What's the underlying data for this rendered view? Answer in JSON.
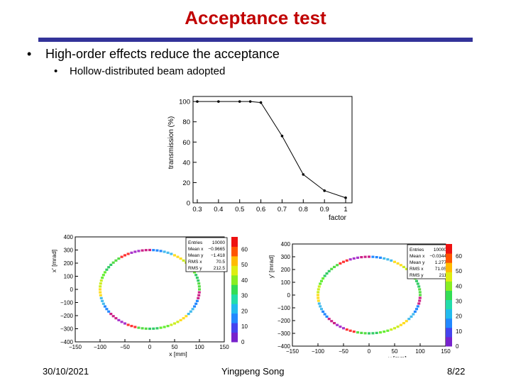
{
  "slide": {
    "title": "Acceptance test",
    "bullet1": "High-order effects reduce the acceptance",
    "bullet2": "Hollow-distributed beam adopted",
    "bullet_symbol": "•",
    "footer_date": "30/10/2021",
    "footer_author": "Yingpeng Song",
    "footer_page": "8/22",
    "title_color": "#c00000",
    "rule_color": "#333399"
  },
  "chart_data": [
    {
      "type": "line",
      "x": [
        0.3,
        0.4,
        0.5,
        0.55,
        0.6,
        0.7,
        0.8,
        0.9,
        1.0
      ],
      "y": [
        100,
        100,
        100,
        100,
        99,
        66,
        28,
        12,
        5
      ],
      "xticks": [
        "0.3",
        "0.4",
        "0.5",
        "0.6",
        "0.7",
        "0.8",
        "0.9",
        "1"
      ],
      "yticks": [
        "0",
        "20",
        "40",
        "60",
        "80",
        "100"
      ],
      "xlabel": "factor",
      "ylabel": "transmission (%)",
      "xlim": [
        0.28,
        1.03
      ],
      "ylim": [
        0,
        105
      ]
    },
    {
      "type": "heatmap",
      "description_shape": "hollow ring",
      "xlabel": "x [mm]",
      "ylabel": "x' [mrad]",
      "xticks": [
        "−150",
        "−100",
        "−50",
        "0",
        "50",
        "100",
        "150"
      ],
      "yticks": [
        "−400",
        "−300",
        "−200",
        "−100",
        "0",
        "100",
        "200",
        "300",
        "400"
      ],
      "xlim": [
        -150,
        150
      ],
      "ylim": [
        -400,
        400
      ],
      "ring_radius_x": 100,
      "ring_radius_y": 300,
      "stats": [
        {
          "label": "Entries",
          "value": "10000"
        },
        {
          "label": "Mean x",
          "value": "−0.9665"
        },
        {
          "label": "Mean y",
          "value": "−1.418"
        },
        {
          "label": "RMS x",
          "value": "70.5"
        },
        {
          "label": "RMS y",
          "value": "212.5"
        }
      ],
      "colorbar_ticks": [
        "0",
        "10",
        "20",
        "30",
        "40",
        "50",
        "60"
      ]
    },
    {
      "type": "heatmap",
      "description_shape": "hollow ring",
      "xlabel": "y [mm]",
      "ylabel": "y' [mrad]",
      "xticks": [
        "−150",
        "−100",
        "−50",
        "0",
        "50",
        "100",
        "150"
      ],
      "yticks": [
        "−400",
        "−300",
        "−200",
        "−100",
        "0",
        "100",
        "200",
        "300",
        "400"
      ],
      "xlim": [
        -150,
        150
      ],
      "ylim": [
        -400,
        400
      ],
      "ring_radius_x": 100,
      "ring_radius_y": 300,
      "stats": [
        {
          "label": "Entries",
          "value": "10000"
        },
        {
          "label": "Mean x",
          "value": "−0.0344"
        },
        {
          "label": "Mean y",
          "value": "1.277"
        },
        {
          "label": "RMS x",
          "value": "71.05"
        },
        {
          "label": "RMS y",
          "value": "211"
        }
      ],
      "colorbar_ticks": [
        "0",
        "10",
        "20",
        "30",
        "40",
        "50",
        "60"
      ]
    }
  ]
}
